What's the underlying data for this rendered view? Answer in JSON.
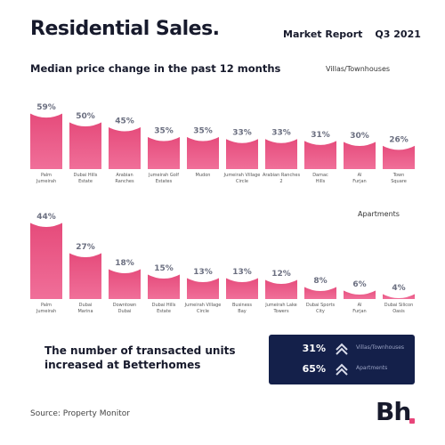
{
  "header": {
    "title": "Residential Sales.",
    "report_label": "Market Report",
    "quarter": "Q3 2021"
  },
  "subtitle": "Median price change in the past 12 months",
  "chart_data": [
    {
      "type": "bar",
      "segment": "Villas/Townhouses",
      "categories": [
        "Palm Jumeirah",
        "Dubai Hills Estate",
        "Arabian Ranches",
        "Jumeirah Golf Estates",
        "Mudon",
        "Jumeirah Village Circle",
        "Arabian Ranches 2",
        "Damac Hills",
        "Al Furjan",
        "Town Square"
      ],
      "values": [
        59,
        50,
        45,
        35,
        35,
        33,
        33,
        31,
        30,
        26
      ],
      "value_labels": [
        "59%",
        "50%",
        "45%",
        "35%",
        "35%",
        "33%",
        "33%",
        "31%",
        "30%",
        "26%"
      ]
    },
    {
      "type": "bar",
      "segment": "Apartments",
      "categories": [
        "Palm Jumeirah",
        "Dubai Marina",
        "Downtown Dubai",
        "Dubai Hills Estate",
        "Jumeirah Village Circle",
        "Business Bay",
        "Jumeirah Lake Towers",
        "Dubai Sports City",
        "Al Furjan",
        "Dubai Silicon Oasis"
      ],
      "values": [
        44,
        27,
        18,
        15,
        13,
        13,
        12,
        8,
        6,
        4
      ],
      "value_labels": [
        "44%",
        "27%",
        "18%",
        "15%",
        "13%",
        "13%",
        "12%",
        "8%",
        "6%",
        "4%"
      ]
    }
  ],
  "callout": "The number of transacted units increased at Betterhomes",
  "stats": [
    {
      "value": "31%",
      "label": "Villas/Townhouses",
      "icon": "double-chevron-up-icon"
    },
    {
      "value": "65%",
      "label": "Apartments",
      "icon": "double-chevron-up-icon"
    }
  ],
  "source": "Source: Property Monitor",
  "logo": "Bh",
  "colors": {
    "bar_top": "#e54a7a",
    "bar_bottom": "#f06f99",
    "navy": "#14204a",
    "arrow": "#d9dcea"
  }
}
